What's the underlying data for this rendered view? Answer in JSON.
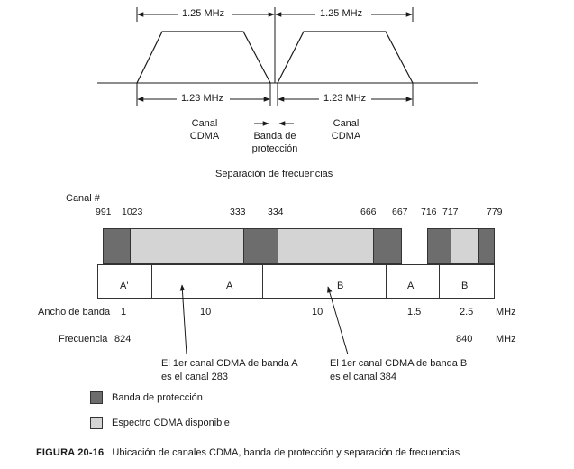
{
  "top_diagram": {
    "span_left": "1.25 MHz",
    "span_right": "1.25 MHz",
    "width_left": "1.23 MHz",
    "width_right": "1.23 MHz",
    "label_left": "Canal\nCDMA",
    "label_guard": "Banda de\nprotección",
    "label_right": "Canal\nCDMA",
    "title": "Separación de frecuencias"
  },
  "channel_map": {
    "heading": "Canal #",
    "channels": [
      "991",
      "1023",
      "333",
      "334",
      "666",
      "667",
      "716",
      "717",
      "779"
    ],
    "bands": [
      "A'",
      "A",
      "B",
      "A'",
      "B'"
    ],
    "bandwidth_label": "Ancho de banda",
    "bandwidths": [
      "1",
      "10",
      "10",
      "1.5",
      "2.5"
    ],
    "bandwidth_unit": "MHz",
    "frequency_label": "Frecuencia",
    "frequency_start": "824",
    "frequency_end": "840",
    "frequency_unit": "MHz",
    "note_a": "El 1er canal CDMA de banda A\nes el canal 283",
    "note_b": "El 1er canal CDMA de banda B\nes el canal 384"
  },
  "legend": {
    "guard": "Banda de protección",
    "spectrum": "Espectro CDMA disponible"
  },
  "colors": {
    "guard": "#6d6d6d",
    "spectrum": "#d4d4d4"
  },
  "caption": {
    "figure": "FIGURA 20-16",
    "text": "Ubicación de canales CDMA, banda de protección y separación de frecuencias"
  }
}
